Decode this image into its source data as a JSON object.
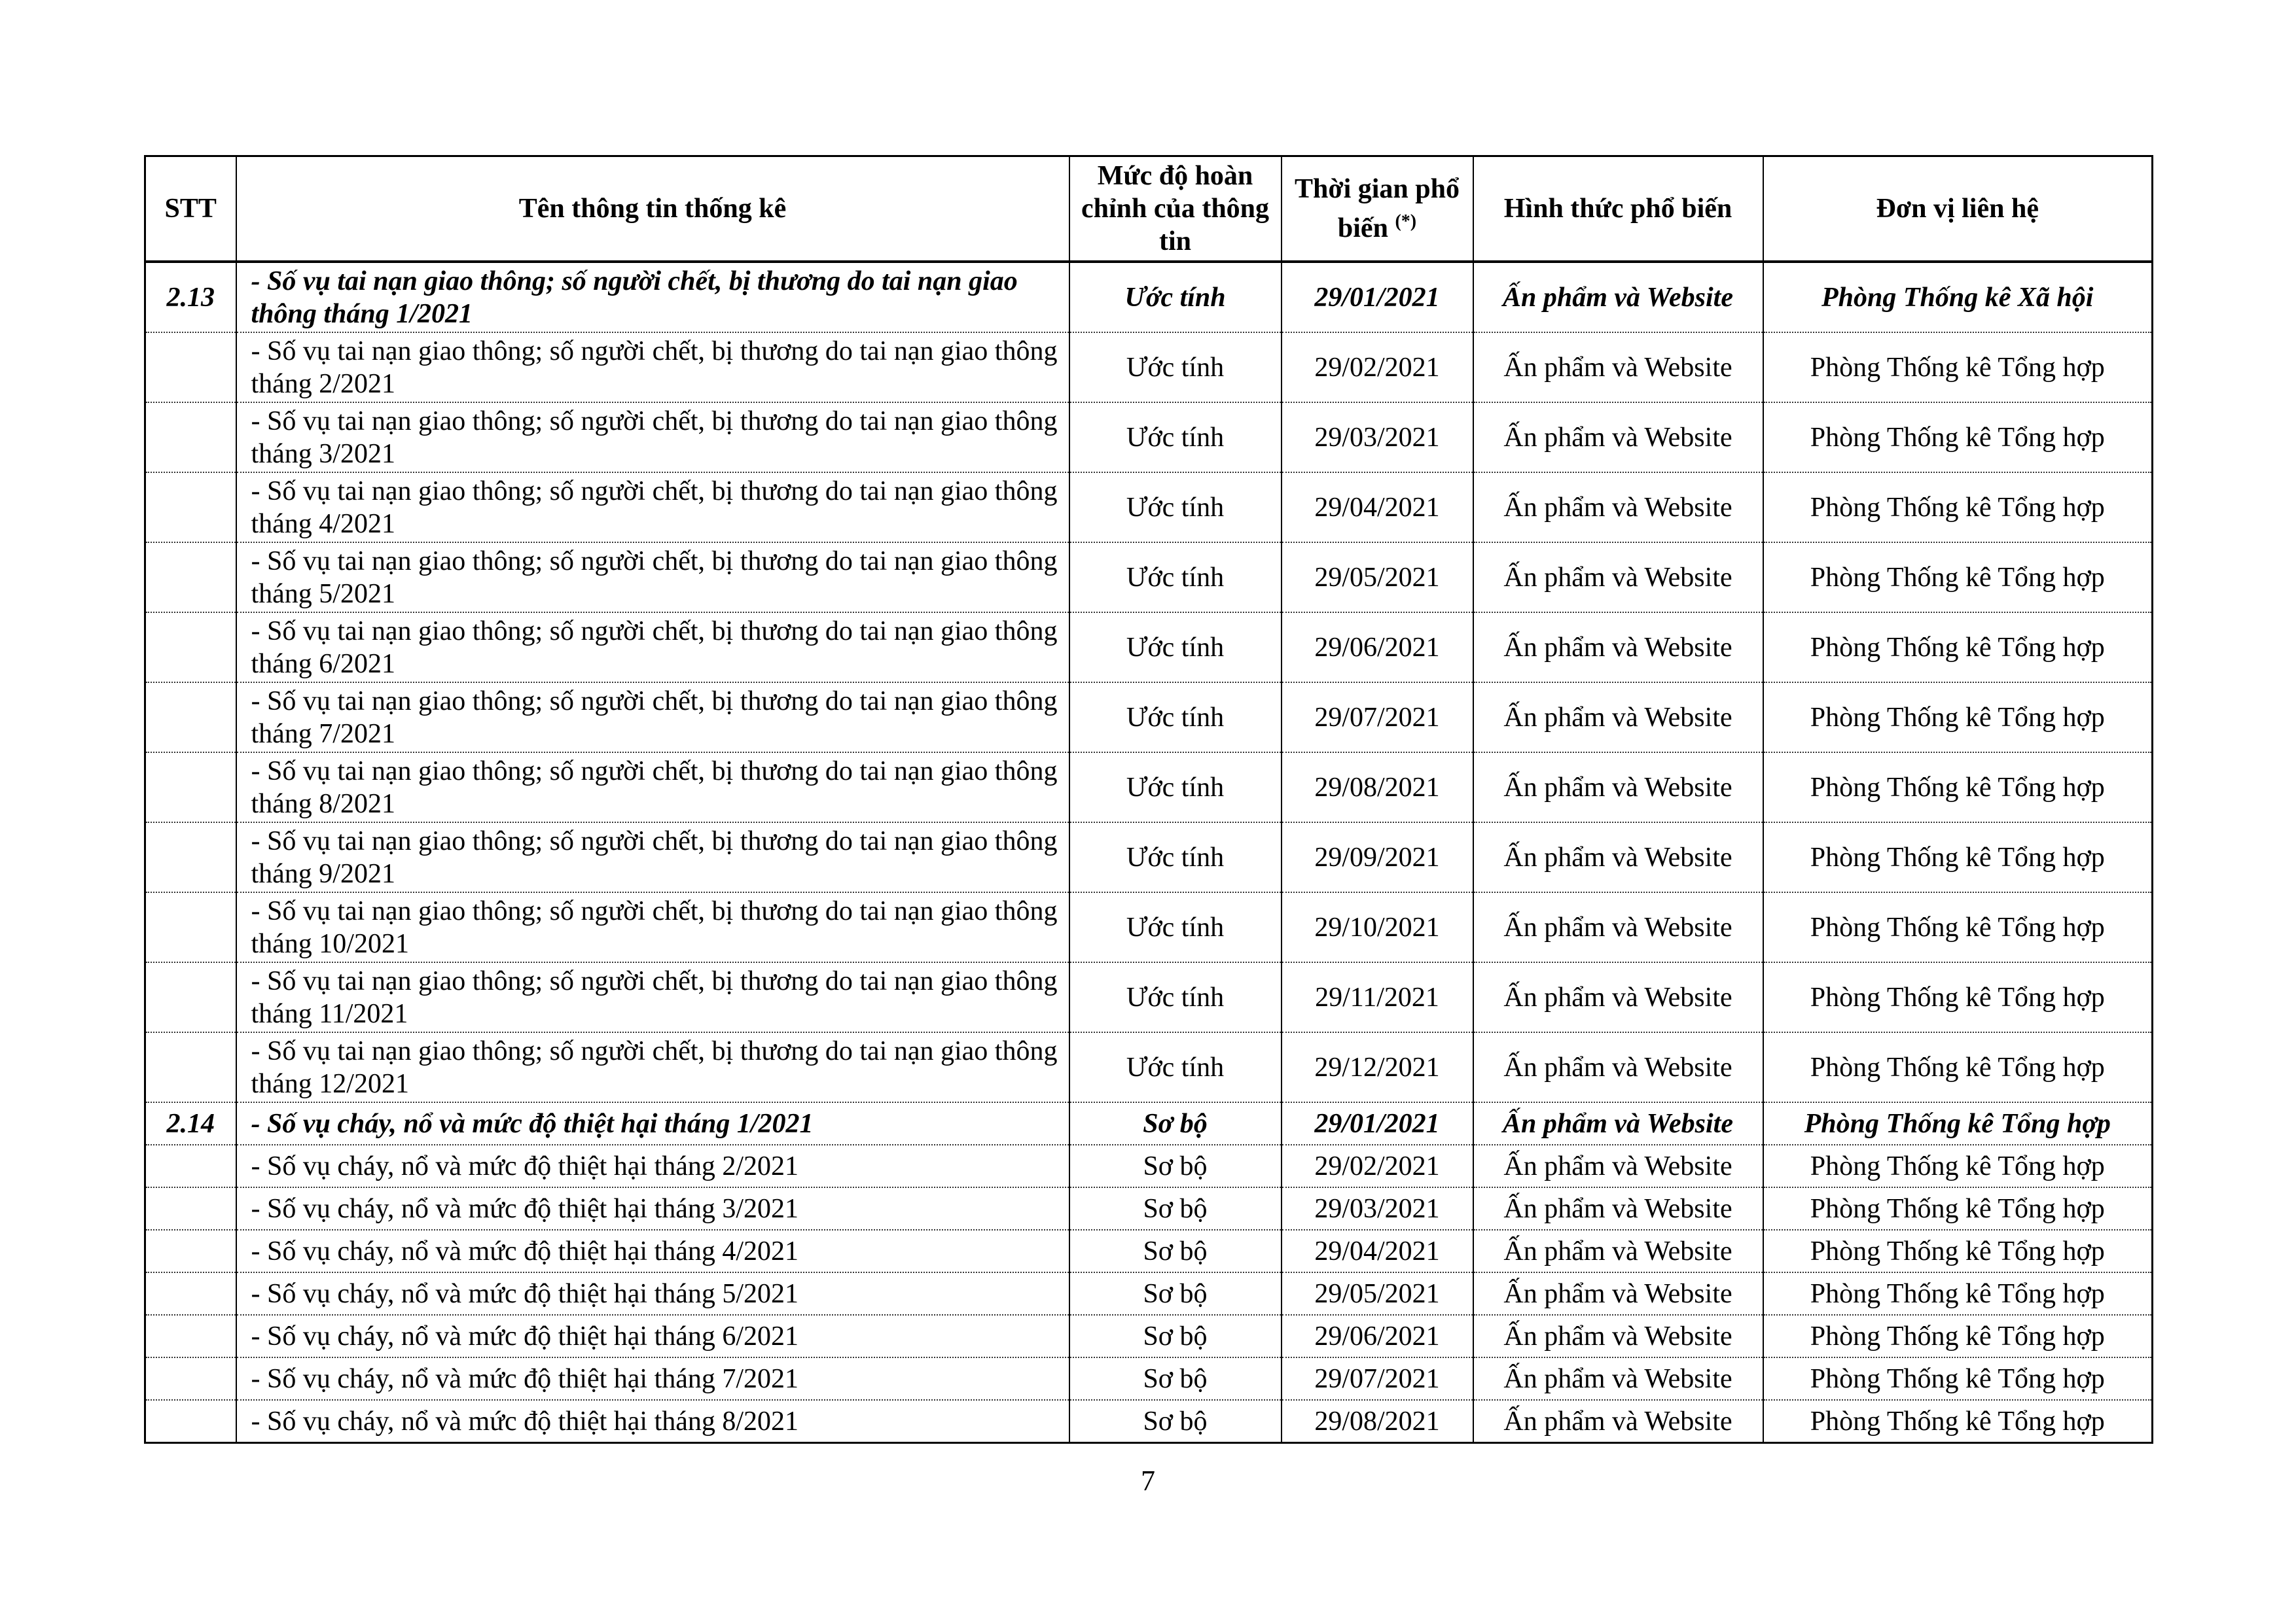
{
  "table": {
    "headers": {
      "stt": "STT",
      "name": "Tên thông tin thống kê",
      "completeness": "Mức độ hoàn chỉnh của thông tin",
      "time": "Thời gian phổ biến",
      "time_note": "(*)",
      "form": "Hình thức phổ biến",
      "unit": "Đơn vị liên hệ"
    },
    "rows": [
      {
        "stt": "2.13",
        "name": "- Số vụ tai nạn giao thông; số người chết, bị thương do tai nạn giao thông tháng 1/2021",
        "completeness": "Ước tính",
        "time": "29/01/2021",
        "form": "Ấn phẩm và Website",
        "unit": "Phòng Thống kê Xã hội",
        "lead": true,
        "size": "big"
      },
      {
        "stt": "",
        "name": "- Số vụ tai nạn giao thông; số người chết, bị thương do tai nạn giao thông tháng 2/2021",
        "completeness": "Ước tính",
        "time": "29/02/2021",
        "form": "Ấn phẩm và Website",
        "unit": "Phòng Thống kê Tổng hợp",
        "size": "big"
      },
      {
        "stt": "",
        "name": "- Số vụ tai nạn giao thông; số người chết, bị thương do tai nạn giao thông tháng 3/2021",
        "completeness": "Ước tính",
        "time": "29/03/2021",
        "form": "Ấn phẩm và Website",
        "unit": "Phòng Thống kê Tổng hợp",
        "size": "big"
      },
      {
        "stt": "",
        "name": "- Số vụ tai nạn giao thông; số người chết, bị thương do tai nạn giao thông tháng 4/2021",
        "completeness": "Ước tính",
        "time": "29/04/2021",
        "form": "Ấn phẩm và Website",
        "unit": "Phòng Thống kê Tổng hợp",
        "size": "big"
      },
      {
        "stt": "",
        "name": "- Số vụ tai nạn giao thông; số người chết, bị thương do tai nạn giao thông tháng 5/2021",
        "completeness": "Ước tính",
        "time": "29/05/2021",
        "form": "Ấn phẩm và Website",
        "unit": "Phòng Thống kê Tổng hợp",
        "size": "big"
      },
      {
        "stt": "",
        "name": "- Số vụ tai nạn giao thông; số người chết, bị thương do tai nạn giao thông tháng 6/2021",
        "completeness": "Ước tính",
        "time": "29/06/2021",
        "form": "Ấn phẩm và Website",
        "unit": "Phòng Thống kê Tổng hợp",
        "size": "big"
      },
      {
        "stt": "",
        "name": "- Số vụ tai nạn giao thông; số người chết, bị thương do tai nạn giao thông tháng 7/2021",
        "completeness": "Ước tính",
        "time": "29/07/2021",
        "form": "Ấn phẩm và Website",
        "unit": "Phòng Thống kê Tổng hợp",
        "size": "big"
      },
      {
        "stt": "",
        "name": "- Số vụ tai nạn giao thông; số người chết, bị thương do tai nạn giao thông tháng 8/2021",
        "completeness": "Ước tính",
        "time": "29/08/2021",
        "form": "Ấn phẩm và Website",
        "unit": "Phòng Thống kê Tổng hợp",
        "size": "big"
      },
      {
        "stt": "",
        "name": "- Số vụ tai nạn giao thông; số người chết, bị thương do tai nạn giao thông tháng 9/2021",
        "completeness": "Ước tính",
        "time": "29/09/2021",
        "form": "Ấn phẩm và Website",
        "unit": "Phòng Thống kê Tổng hợp",
        "size": "big"
      },
      {
        "stt": "",
        "name": "- Số vụ tai nạn giao thông; số người chết, bị thương do tai nạn giao thông tháng 10/2021",
        "completeness": "Ước tính",
        "time": "29/10/2021",
        "form": "Ấn phẩm và Website",
        "unit": "Phòng Thống kê Tổng hợp",
        "size": "big"
      },
      {
        "stt": "",
        "name": "- Số vụ tai nạn giao thông; số người chết, bị thương do tai nạn giao thông tháng 11/2021",
        "completeness": "Ước tính",
        "time": "29/11/2021",
        "form": "Ấn phẩm và Website",
        "unit": "Phòng Thống kê Tổng hợp",
        "size": "big"
      },
      {
        "stt": "",
        "name": "- Số vụ tai nạn giao thông; số người chết, bị thương do tai nạn giao thông tháng 12/2021",
        "completeness": "Ước tính",
        "time": "29/12/2021",
        "form": "Ấn phẩm và Website",
        "unit": "Phòng Thống kê Tổng hợp",
        "size": "big"
      },
      {
        "stt": "2.14",
        "name": "- Số vụ cháy, nổ và mức độ thiệt hại tháng 1/2021",
        "completeness": "Sơ bộ",
        "time": "29/01/2021",
        "form": "Ấn phẩm và Website",
        "unit": "Phòng Thống kê Tổng hợp",
        "lead": true,
        "size": "small"
      },
      {
        "stt": "",
        "name": "- Số vụ cháy, nổ và mức độ thiệt hại tháng 2/2021",
        "completeness": "Sơ bộ",
        "time": "29/02/2021",
        "form": "Ấn phẩm và Website",
        "unit": "Phòng Thống kê Tổng hợp",
        "size": "small"
      },
      {
        "stt": "",
        "name": "- Số vụ cháy, nổ và mức độ thiệt hại tháng 3/2021",
        "completeness": "Sơ bộ",
        "time": "29/03/2021",
        "form": "Ấn phẩm và Website",
        "unit": "Phòng Thống kê Tổng hợp",
        "size": "small"
      },
      {
        "stt": "",
        "name": "- Số vụ cháy, nổ và mức độ thiệt hại tháng 4/2021",
        "completeness": "Sơ bộ",
        "time": "29/04/2021",
        "form": "Ấn phẩm và Website",
        "unit": "Phòng Thống kê Tổng hợp",
        "size": "small"
      },
      {
        "stt": "",
        "name": "- Số vụ cháy, nổ và mức độ thiệt hại tháng 5/2021",
        "completeness": "Sơ bộ",
        "time": "29/05/2021",
        "form": "Ấn phẩm và Website",
        "unit": "Phòng Thống kê Tổng hợp",
        "size": "small"
      },
      {
        "stt": "",
        "name": "- Số vụ cháy, nổ và mức độ thiệt hại tháng 6/2021",
        "completeness": "Sơ bộ",
        "time": "29/06/2021",
        "form": "Ấn phẩm và Website",
        "unit": "Phòng Thống kê Tổng hợp",
        "size": "small"
      },
      {
        "stt": "",
        "name": "- Số vụ cháy, nổ và mức độ thiệt hại tháng 7/2021",
        "completeness": "Sơ bộ",
        "time": "29/07/2021",
        "form": "Ấn phẩm và Website",
        "unit": "Phòng Thống kê Tổng hợp",
        "size": "small"
      },
      {
        "stt": "",
        "name": "- Số vụ cháy, nổ và mức độ thiệt hại tháng 8/2021",
        "completeness": "Sơ bộ",
        "time": "29/08/2021",
        "form": "Ấn phẩm và Website",
        "unit": "Phòng Thống kê Tổng hợp",
        "size": "small"
      }
    ]
  },
  "page_number": "7"
}
